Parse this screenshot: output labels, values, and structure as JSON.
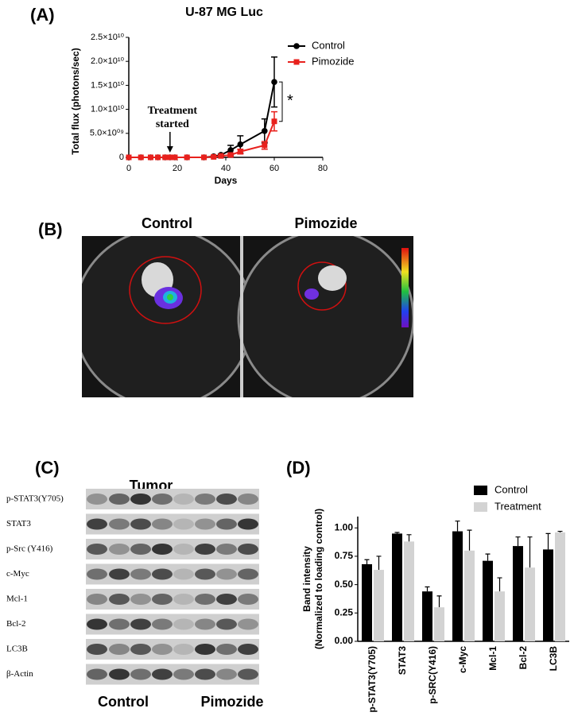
{
  "chart_data": [
    {
      "type": "line",
      "panel_label": "(A)",
      "title": "U-87 MG Luc",
      "xlabel": "Days",
      "ylabel": "Total flux (photons/sec)",
      "x": [
        0,
        5,
        9,
        12,
        15,
        17,
        19,
        24,
        31,
        35,
        38,
        42,
        46,
        56,
        60
      ],
      "series": [
        {
          "name": "Control",
          "color": "#000000",
          "marker": "circle",
          "values": [
            0,
            0,
            0,
            0,
            0,
            0,
            0,
            0,
            0,
            200000000,
            500000000,
            1500000000,
            2700000000,
            5500000000,
            15700000000
          ],
          "errors": [
            0,
            0,
            0,
            0,
            0,
            0,
            0,
            0,
            0,
            100000000,
            200000000,
            1000000000,
            1800000000,
            2500000000,
            5200000000
          ]
        },
        {
          "name": "Pimozide",
          "color": "#e8211d",
          "marker": "square",
          "values": [
            0,
            0,
            0,
            0,
            0,
            0,
            0,
            0,
            0,
            100000000,
            300000000,
            500000000,
            1200000000,
            2500000000,
            7500000000
          ],
          "errors": [
            0,
            0,
            0,
            0,
            0,
            0,
            0,
            0,
            0,
            100000000,
            100000000,
            300000000,
            500000000,
            800000000,
            2000000000
          ]
        }
      ],
      "xlim": [
        0,
        80
      ],
      "xticks": [
        0,
        20,
        40,
        60,
        80
      ],
      "ylim": [
        0,
        25000000000
      ],
      "yticks": [
        0,
        {
          "value": 5000000000,
          "label": "5.0×10⁰⁹"
        },
        {
          "value": 10000000000,
          "label": "1.0×10¹⁰"
        },
        {
          "value": 15000000000,
          "label": "1.5×10¹⁰"
        },
        {
          "value": 20000000000,
          "label": "2.0×10¹⁰"
        },
        {
          "value": 25000000000,
          "label": "2.5×10¹⁰"
        }
      ],
      "legend": "upper right",
      "annotations": {
        "treatment": [
          "Treatment",
          "started"
        ],
        "treatment_day": 17,
        "significance": "*"
      }
    },
    {
      "type": "bar",
      "panel_label": "(D)",
      "ylabel": [
        "Band intensity",
        "(Normalized to loading control)"
      ],
      "categories": [
        "p-STAT3(Y705)",
        "STAT3",
        "p-SRC(Y416)",
        "c-Myc",
        "Mcl-1",
        "Bcl-2",
        "LC3B"
      ],
      "series": [
        {
          "name": "Control",
          "color": "#000000",
          "values": [
            0.68,
            0.95,
            0.44,
            0.97,
            0.71,
            0.84,
            0.81
          ],
          "errors": [
            0.04,
            0.01,
            0.04,
            0.09,
            0.06,
            0.08,
            0.14
          ]
        },
        {
          "name": "Treatment",
          "color": "#d3d3d3",
          "values": [
            0.63,
            0.88,
            0.3,
            0.8,
            0.44,
            0.65,
            0.96
          ],
          "errors": [
            0.12,
            0.06,
            0.1,
            0.18,
            0.12,
            0.27,
            0.01
          ]
        }
      ],
      "ylim": [
        0,
        1.1
      ],
      "yticks": [
        {
          "value": 0,
          "label": "0.00"
        },
        {
          "value": 0.25,
          "label": "0.25"
        },
        {
          "value": 0.5,
          "label": "0.50"
        },
        {
          "value": 0.75,
          "label": "0.75"
        },
        {
          "value": 1,
          "label": "1.00"
        }
      ],
      "legend": "upper right"
    }
  ],
  "panels": {
    "b": {
      "label": "(B)",
      "left": "Control",
      "right": "Pimozide"
    },
    "c": {
      "label": "(C)",
      "header": "Tumor",
      "rows": [
        "p-STAT3(Y705)",
        "STAT3",
        "p-Src (Y416)",
        "c-Myc",
        "Mcl-1",
        "Bcl-2",
        "LC3B",
        "β-Actin"
      ],
      "groups": [
        "Control",
        "Pimozide"
      ]
    }
  }
}
